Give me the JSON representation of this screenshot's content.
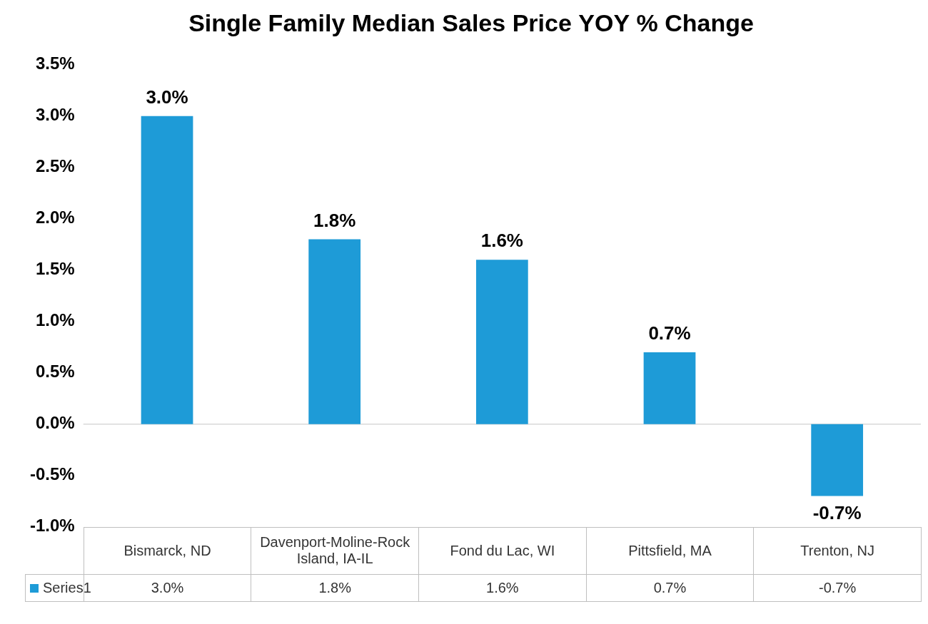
{
  "chart_data": {
    "type": "bar",
    "title": "Single Family Median Sales Price YOY % Change",
    "categories": [
      "Bismarck, ND",
      "Davenport-Moline-Rock Island, IA-IL",
      "Fond du Lac, WI",
      "Pittsfield, MA",
      "Trenton, NJ"
    ],
    "series": [
      {
        "name": "Series1",
        "color": "#1e9bd7",
        "values": [
          3.0,
          1.8,
          1.6,
          0.7,
          -0.7
        ],
        "value_labels": [
          "3.0%",
          "1.8%",
          "1.6%",
          "0.7%",
          "-0.7%"
        ]
      }
    ],
    "ylim": [
      -1.0,
      3.5
    ],
    "yticks": [
      {
        "value": -1.0,
        "label": "-1.0%"
      },
      {
        "value": -0.5,
        "label": "-0.5%"
      },
      {
        "value": 0,
        "label": "0.0%"
      },
      {
        "value": 0.5,
        "label": "0.5%"
      },
      {
        "value": 1.0,
        "label": "1.0%"
      },
      {
        "value": 1.5,
        "label": "1.5%"
      },
      {
        "value": 2.0,
        "label": "2.0%"
      },
      {
        "value": 2.5,
        "label": "2.5%"
      },
      {
        "value": 3.0,
        "label": "3.0%"
      },
      {
        "value": 3.5,
        "label": "3.5%"
      }
    ],
    "grid": false,
    "data_labels": true
  }
}
